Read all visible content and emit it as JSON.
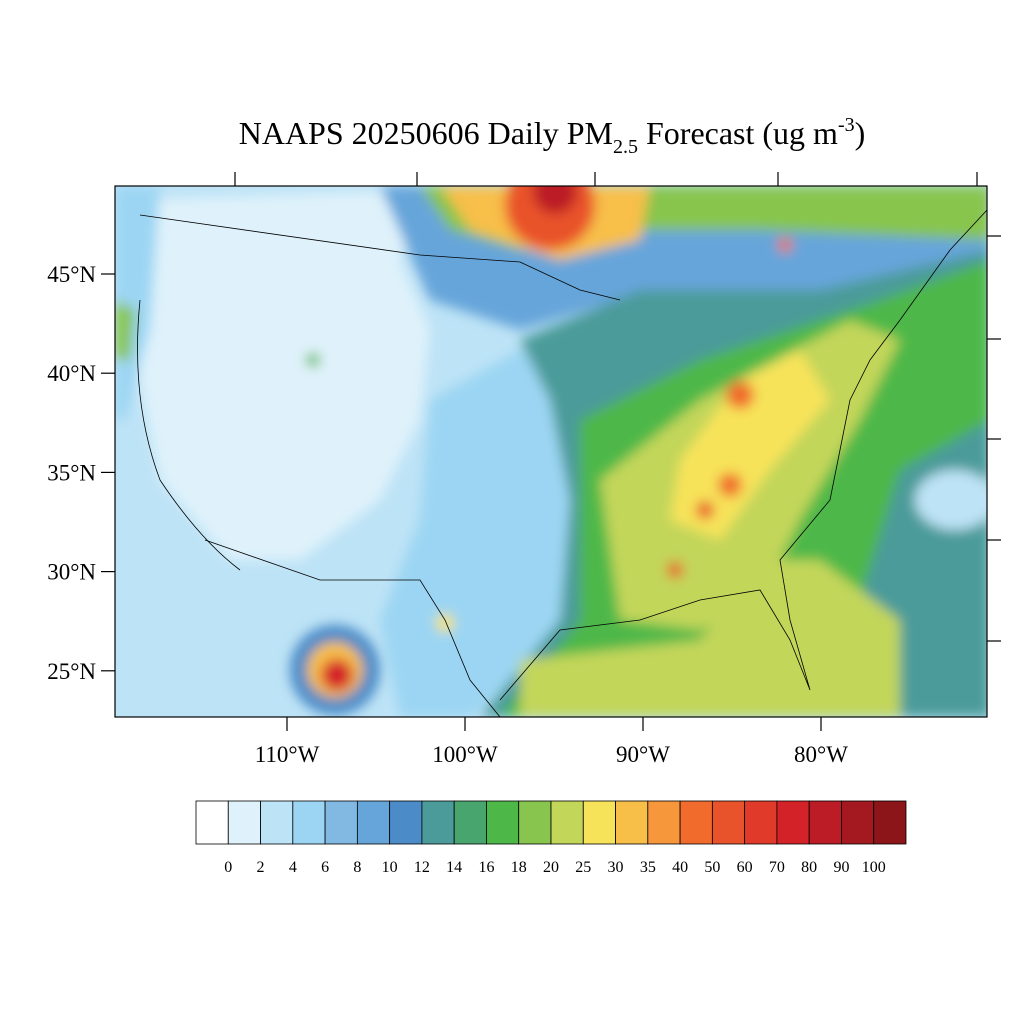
{
  "title": {
    "text": "NAAPS 20250606 Daily PM",
    "subscript": "2.5",
    "middle": " Forecast (ug m",
    "superscript": "-3",
    "end": ")"
  },
  "lat_labels": [
    "45°N",
    "40°N",
    "35°N",
    "30°N",
    "25°N"
  ],
  "lon_labels": [
    "110°W",
    "100°W",
    "90°W",
    "80°W"
  ],
  "colorbar": {
    "levels": [
      0,
      2,
      4,
      6,
      8,
      10,
      12,
      14,
      16,
      18,
      20,
      25,
      30,
      35,
      40,
      50,
      60,
      70,
      80,
      90,
      100
    ],
    "colors": [
      "#ffffff",
      "#dff2fb",
      "#bde3f6",
      "#9bd5f3",
      "#82b9e3",
      "#66a5da",
      "#4a8bc8",
      "#4b9b9a",
      "#48a56e",
      "#4db848",
      "#87c54e",
      "#c2d65a",
      "#f7e35a",
      "#f8bf48",
      "#f6973c",
      "#f06b2c",
      "#e9532c",
      "#e03a2a",
      "#d42229",
      "#bb1c26",
      "#a3191f",
      "#8c1519"
    ]
  }
}
